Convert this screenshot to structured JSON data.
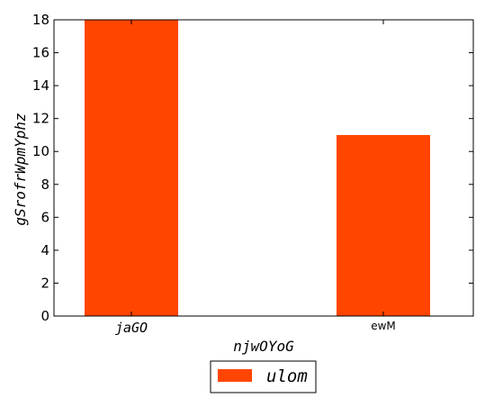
{
  "chart_data": {
    "type": "bar",
    "categories": [
      "jaGO",
      "ewM"
    ],
    "series": [
      {
        "name": "ulom",
        "values": [
          18,
          11
        ],
        "color": "#ff4500"
      }
    ],
    "xlabel": "njwOYoG",
    "ylabel": "gSrofrWpmYphz",
    "ylim": [
      0,
      18
    ],
    "yticks": [
      0,
      2,
      4,
      6,
      8,
      10,
      12,
      14,
      16,
      18
    ],
    "grid": false,
    "legend_position": "bottom-center"
  }
}
